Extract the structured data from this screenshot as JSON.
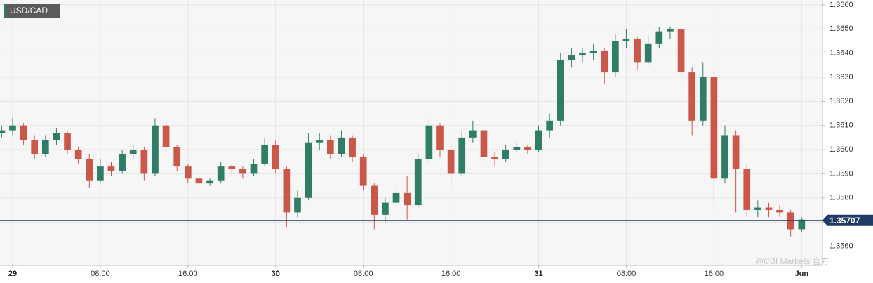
{
  "chart_data": {
    "type": "candlestick",
    "title": "USD/CAD",
    "watermark": "@CBI Markets 官方",
    "up_color": "#2f7d66",
    "down_color": "#c9584a",
    "grid": true,
    "last_price": 1.35707,
    "last_price_color": "#1f3a63",
    "xlim": [
      -1.15,
      73.9
    ],
    "ylim": [
      1.3552,
      1.3662
    ],
    "xticks": [
      {
        "value": 0,
        "label": "29"
      },
      {
        "value": 8,
        "label": "08:00"
      },
      {
        "value": 16,
        "label": "16:00"
      },
      {
        "value": 24,
        "label": "30"
      },
      {
        "value": 32,
        "label": "08:00"
      },
      {
        "value": 40,
        "label": "16:00"
      },
      {
        "value": 48,
        "label": "31"
      },
      {
        "value": 56,
        "label": "08:00"
      },
      {
        "value": 64,
        "label": "16:00"
      },
      {
        "value": 72,
        "label": "Jun"
      }
    ],
    "yticks": [
      {
        "value": 1.356,
        "label": "1.3560"
      },
      {
        "value": 1.357,
        "label": "1.3570"
      },
      {
        "value": 1.358,
        "label": "1.3580"
      },
      {
        "value": 1.359,
        "label": "1.3590"
      },
      {
        "value": 1.36,
        "label": "1.3600"
      },
      {
        "value": 1.361,
        "label": "1.3610"
      },
      {
        "value": 1.362,
        "label": "1.3620"
      },
      {
        "value": 1.363,
        "label": "1.3630"
      },
      {
        "value": 1.364,
        "label": "1.3640"
      },
      {
        "value": 1.365,
        "label": "1.3650"
      },
      {
        "value": 1.366,
        "label": "1.3660"
      }
    ],
    "x": [
      -1,
      0,
      1,
      2,
      3,
      4,
      5,
      6,
      7,
      8,
      9,
      10,
      11,
      12,
      13,
      14,
      15,
      16,
      17,
      18,
      19,
      20,
      21,
      22,
      23,
      24,
      25,
      26,
      27,
      28,
      29,
      30,
      31,
      32,
      33,
      34,
      35,
      36,
      37,
      38,
      39,
      40,
      41,
      42,
      43,
      44,
      45,
      46,
      47,
      48,
      49,
      50,
      51,
      52,
      53,
      54,
      55,
      56,
      57,
      58,
      59,
      60,
      61,
      62,
      63,
      64,
      65,
      66,
      67,
      68,
      69,
      70,
      71,
      72
    ],
    "open": [
      1.3607,
      1.3608,
      1.361,
      1.3604,
      1.3598,
      1.3604,
      1.3607,
      1.36,
      1.3596,
      1.3587,
      1.3593,
      1.3591,
      1.3598,
      1.36,
      1.359,
      1.361,
      1.3601,
      1.3593,
      1.3588,
      1.3586,
      1.3587,
      1.3593,
      1.3592,
      1.359,
      1.3594,
      1.3602,
      1.3592,
      1.3574,
      1.358,
      1.3603,
      1.3604,
      1.3598,
      1.3605,
      1.3597,
      1.3585,
      1.3573,
      1.3578,
      1.3582,
      1.3577,
      1.3596,
      1.361,
      1.36,
      1.359,
      1.3605,
      1.3608,
      1.3597,
      1.3596,
      1.36,
      1.3601,
      1.36,
      1.3608,
      1.3612,
      1.3637,
      1.3639,
      1.364,
      1.3641,
      1.3632,
      1.3645,
      1.3646,
      1.3636,
      1.3644,
      1.3649,
      1.365,
      1.3632,
      1.3612,
      1.363,
      1.3588,
      1.3606,
      1.3592,
      1.3575,
      1.3576,
      1.3575,
      1.3574,
      1.3567
    ],
    "high": [
      1.361,
      1.3613,
      1.3611,
      1.3606,
      1.3606,
      1.3609,
      1.3608,
      1.3601,
      1.3598,
      1.3596,
      1.3595,
      1.36,
      1.3602,
      1.3601,
      1.3613,
      1.3612,
      1.3602,
      1.3594,
      1.3589,
      1.3588,
      1.3595,
      1.3594,
      1.3593,
      1.3596,
      1.3605,
      1.3604,
      1.3593,
      1.3583,
      1.3607,
      1.3607,
      1.3606,
      1.3608,
      1.3606,
      1.3598,
      1.3586,
      1.358,
      1.3585,
      1.3589,
      1.3598,
      1.3613,
      1.3611,
      1.3602,
      1.3608,
      1.3612,
      1.3609,
      1.3599,
      1.3602,
      1.3603,
      1.3602,
      1.361,
      1.3615,
      1.364,
      1.3642,
      1.3642,
      1.3644,
      1.3642,
      1.3648,
      1.365,
      1.3647,
      1.3647,
      1.3651,
      1.3651,
      1.3651,
      1.3634,
      1.3636,
      1.3632,
      1.361,
      1.3608,
      1.3594,
      1.3579,
      1.3578,
      1.3577,
      1.3575,
      1.3572
    ],
    "low": [
      1.3605,
      1.3606,
      1.3602,
      1.3596,
      1.3597,
      1.3602,
      1.3598,
      1.3594,
      1.3584,
      1.3586,
      1.3589,
      1.359,
      1.3596,
      1.3587,
      1.3589,
      1.3599,
      1.3591,
      1.3586,
      1.3584,
      1.3585,
      1.3586,
      1.359,
      1.3588,
      1.3589,
      1.3593,
      1.359,
      1.3568,
      1.3572,
      1.3579,
      1.36,
      1.3596,
      1.3597,
      1.3595,
      1.3583,
      1.3567,
      1.357,
      1.3576,
      1.3571,
      1.3576,
      1.3594,
      1.3597,
      1.3585,
      1.3589,
      1.3603,
      1.3595,
      1.3593,
      1.3595,
      1.3599,
      1.3598,
      1.3599,
      1.3605,
      1.361,
      1.3634,
      1.3636,
      1.3637,
      1.3627,
      1.363,
      1.3642,
      1.3633,
      1.3635,
      1.3642,
      1.3646,
      1.3628,
      1.3606,
      1.361,
      1.3578,
      1.3586,
      1.3574,
      1.3572,
      1.3572,
      1.3572,
      1.3572,
      1.3564,
      1.3566
    ],
    "close": [
      1.3608,
      1.361,
      1.3604,
      1.3598,
      1.3604,
      1.3607,
      1.36,
      1.3596,
      1.3587,
      1.3593,
      1.3591,
      1.3598,
      1.36,
      1.359,
      1.361,
      1.3601,
      1.3593,
      1.3588,
      1.3586,
      1.3587,
      1.3593,
      1.3592,
      1.359,
      1.3594,
      1.3602,
      1.3592,
      1.3574,
      1.358,
      1.3603,
      1.3604,
      1.3598,
      1.3605,
      1.3597,
      1.3585,
      1.3573,
      1.3578,
      1.3582,
      1.3577,
      1.3596,
      1.361,
      1.36,
      1.359,
      1.3605,
      1.3608,
      1.3597,
      1.3596,
      1.36,
      1.3601,
      1.36,
      1.3608,
      1.3612,
      1.3637,
      1.3639,
      1.364,
      1.3641,
      1.3632,
      1.3645,
      1.3646,
      1.3636,
      1.3644,
      1.3649,
      1.365,
      1.3632,
      1.3612,
      1.363,
      1.3588,
      1.3606,
      1.3592,
      1.3575,
      1.3576,
      1.3575,
      1.3574,
      1.3567,
      1.3571
    ]
  }
}
